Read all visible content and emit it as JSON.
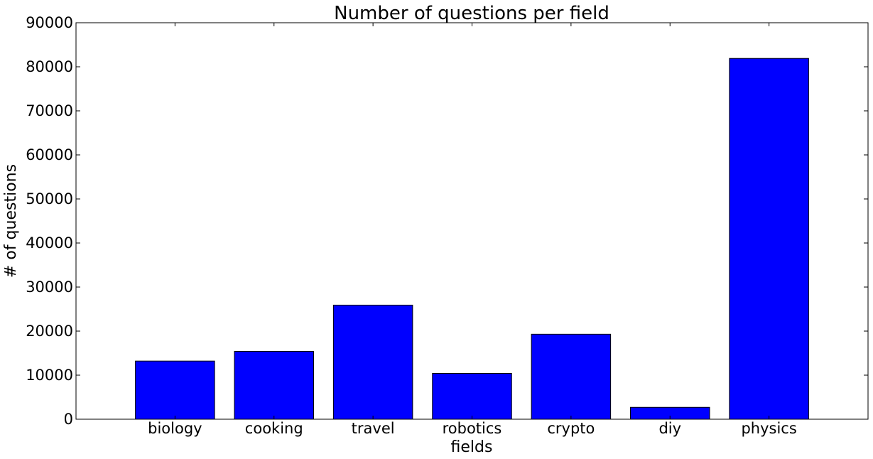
{
  "chart_data": {
    "type": "bar",
    "title": "Number of questions per field",
    "xlabel": "fields",
    "ylabel": "# of questions",
    "categories": [
      "biology",
      "cooking",
      "travel",
      "robotics",
      "crypto",
      "diy",
      "physics"
    ],
    "values": [
      13200,
      15400,
      25900,
      10400,
      19300,
      2700,
      81900
    ],
    "ylim": [
      0,
      90000
    ],
    "yticks": [
      "0",
      "10000",
      "20000",
      "30000",
      "40000",
      "50000",
      "60000",
      "70000",
      "80000",
      "90000"
    ],
    "grid": false,
    "legend": "none",
    "colors": {
      "bar": "#0000ff",
      "edge": "#000000"
    }
  }
}
